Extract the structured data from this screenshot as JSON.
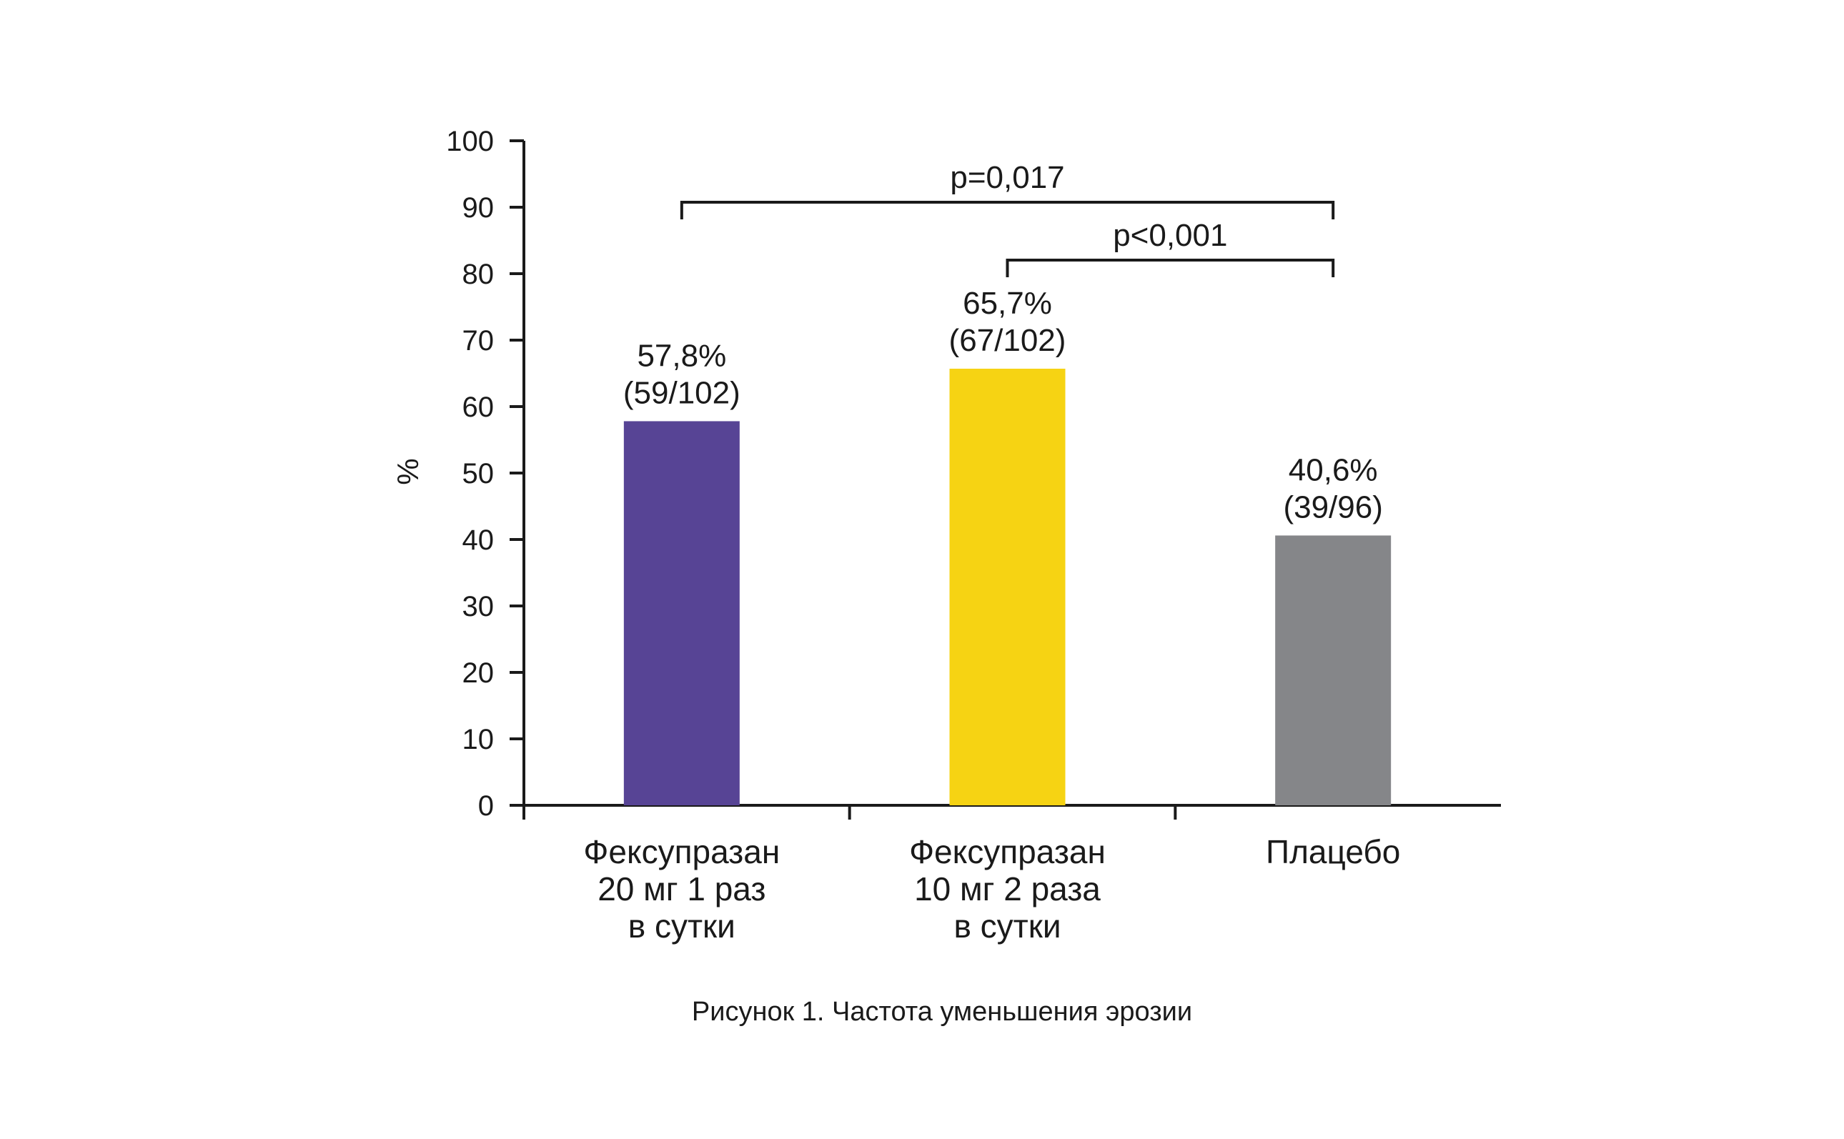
{
  "chart_data": {
    "type": "bar",
    "categories": [
      [
        "Фексупразан",
        "20 мг 1 раз",
        "в сутки"
      ],
      [
        "Фексупразан",
        "10 мг 2 раза",
        "в сутки"
      ],
      [
        "Плацебо"
      ]
    ],
    "values": [
      57.8,
      65.7,
      40.6
    ],
    "value_labels": [
      "57,8%",
      "65,7%",
      "40,6%"
    ],
    "count_labels": [
      "(59/102)",
      "(67/102)",
      "(39/96)"
    ],
    "colors": [
      "#574495",
      "#f6d313",
      "#858689"
    ],
    "ylabel": "%",
    "ylim": [
      0,
      100
    ],
    "yticks": [
      0,
      10,
      20,
      30,
      40,
      50,
      60,
      70,
      80,
      90,
      100
    ],
    "grid": false,
    "significance": [
      {
        "from": 0,
        "to": 2,
        "label": "p=0,017"
      },
      {
        "from": 1,
        "to": 2,
        "label": "p<0,001"
      }
    ]
  },
  "caption": "Рисунок 1. Частота уменьшения эрозии"
}
